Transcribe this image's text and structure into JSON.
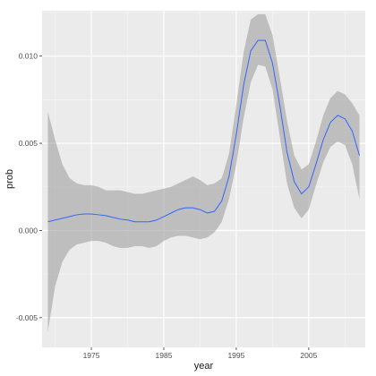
{
  "chart_data": {
    "type": "line",
    "title": "",
    "xlabel": "year",
    "ylabel": "prob",
    "xlim": [
      1968.2,
      2012.8
    ],
    "ylim": [
      -0.0067,
      0.0126
    ],
    "x_ticks": [
      1975,
      1985,
      1995,
      2005
    ],
    "x_tick_labels": [
      "1975",
      "1985",
      "1995",
      "2005"
    ],
    "y_ticks": [
      -0.005,
      0.0,
      0.005,
      0.01
    ],
    "y_tick_labels": [
      "-0.005",
      "0.000",
      "0.005",
      "0.010"
    ],
    "grid": true,
    "legend": "none",
    "colors": {
      "panel": "#ebebeb",
      "grid_major": "#ffffff",
      "grid_minor": "#f5f5f5",
      "line": "#3366ff",
      "ribbon": "#999999"
    },
    "series": [
      {
        "x": [
          1969,
          1970,
          1971,
          1972,
          1973,
          1974,
          1975,
          1976,
          1977,
          1978,
          1979,
          1980,
          1981,
          1982,
          1983,
          1984,
          1985,
          1986,
          1987,
          1988,
          1989,
          1990,
          1991,
          1992,
          1993,
          1994,
          1995,
          1996,
          1997,
          1998,
          1999,
          2000,
          2001,
          2002,
          2003,
          2004,
          2005,
          2006,
          2007,
          2008,
          2009,
          2010,
          2011,
          2012
        ],
        "y": [
          0.0005,
          0.0006,
          0.0007,
          0.0008,
          0.0009,
          0.00095,
          0.00095,
          0.0009,
          0.00085,
          0.00075,
          0.00065,
          0.0006,
          0.0005,
          0.0005,
          0.0005,
          0.0006,
          0.0008,
          0.001,
          0.0012,
          0.0013,
          0.0013,
          0.0012,
          0.001,
          0.0011,
          0.0017,
          0.0031,
          0.0055,
          0.0083,
          0.0103,
          0.0109,
          0.0109,
          0.0096,
          0.0072,
          0.0045,
          0.0028,
          0.0021,
          0.0025,
          0.0038,
          0.0052,
          0.0062,
          0.0066,
          0.0064,
          0.0057,
          0.0043
        ],
        "lower": [
          -0.0058,
          -0.0032,
          -0.0018,
          -0.0011,
          -0.0008,
          -0.0007,
          -0.0006,
          -0.0006,
          -0.0007,
          -0.0009,
          -0.001,
          -0.001,
          -0.0009,
          -0.0009,
          -0.001,
          -0.0009,
          -0.0006,
          -0.0004,
          -0.0003,
          -0.0003,
          -0.0004,
          -0.0005,
          -0.0004,
          -0.0001,
          0.0005,
          0.0018,
          0.0038,
          0.0064,
          0.0085,
          0.0095,
          0.0094,
          0.0081,
          0.0054,
          0.0027,
          0.0013,
          0.0007,
          0.0012,
          0.0026,
          0.0039,
          0.0048,
          0.0051,
          0.0049,
          0.0038,
          0.0018
        ],
        "upper": [
          0.0068,
          0.0052,
          0.0038,
          0.003,
          0.0027,
          0.0026,
          0.0026,
          0.0025,
          0.0023,
          0.0023,
          0.0023,
          0.0022,
          0.0021,
          0.0021,
          0.0022,
          0.0023,
          0.0024,
          0.0025,
          0.0027,
          0.0029,
          0.0031,
          0.0029,
          0.0026,
          0.0027,
          0.003,
          0.0044,
          0.0072,
          0.0102,
          0.0121,
          0.0124,
          0.0124,
          0.0112,
          0.0088,
          0.0063,
          0.0043,
          0.0035,
          0.0038,
          0.0051,
          0.0066,
          0.0076,
          0.008,
          0.0078,
          0.0073,
          0.0066
        ]
      }
    ]
  }
}
